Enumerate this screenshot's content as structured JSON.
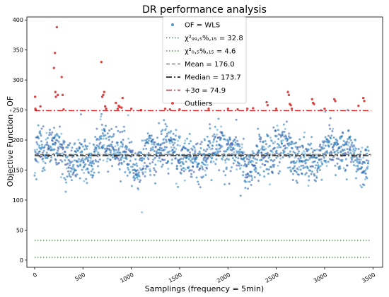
{
  "chart_data": {
    "type": "scatter",
    "title": "DR performance analysis",
    "xlabel": "Samplings (frequency = 5min)",
    "ylabel": "Objective Function - OF",
    "xlim": [
      -80,
      3600
    ],
    "ylim": [
      -12,
      405
    ],
    "x_ticks": [
      0,
      500,
      1000,
      1500,
      2000,
      2500,
      3000,
      3500
    ],
    "y_ticks": [
      0,
      50,
      100,
      150,
      200,
      250,
      300,
      350,
      400
    ],
    "grid": false,
    "legend_position": "top-center",
    "n_samples": 3456,
    "series": [
      {
        "name": "OF = WLS",
        "kind": "points",
        "color": "#1f77b4",
        "typical_range": [
          110,
          250
        ],
        "center": 176
      },
      {
        "name": "χ²₉₉,₅%,₁₅ = 32.8",
        "kind": "hline",
        "y": 32.8,
        "color": "#2ca02c",
        "style": "dotted"
      },
      {
        "name": "χ²₀,₅%,₁₅ = 4.6",
        "kind": "hline",
        "y": 4.6,
        "color": "#2ca02c",
        "style": "dotted"
      },
      {
        "name": "Mean = 176.0",
        "kind": "hline",
        "y": 176.0,
        "color": "#808080",
        "style": "dashed"
      },
      {
        "name": "Median = 173.7",
        "kind": "hline",
        "y": 173.7,
        "color": "#000000",
        "style": "dashdot"
      },
      {
        "name": "+3σ = 74.9",
        "kind": "hline",
        "y": 249,
        "color": "#d62728",
        "style": "dashdot"
      },
      {
        "name": "Outliers",
        "kind": "points",
        "color": "#d62728",
        "points": [
          [
            5,
            272
          ],
          [
            8,
            252
          ],
          [
            12,
            250
          ],
          [
            60,
            256
          ],
          [
            200,
            320
          ],
          [
            210,
            345
          ],
          [
            215,
            280
          ],
          [
            220,
            272
          ],
          [
            230,
            388
          ],
          [
            240,
            275
          ],
          [
            280,
            305
          ],
          [
            290,
            275
          ],
          [
            300,
            251
          ],
          [
            690,
            330
          ],
          [
            700,
            272
          ],
          [
            710,
            275
          ],
          [
            720,
            280
          ],
          [
            730,
            256
          ],
          [
            740,
            252
          ],
          [
            840,
            262
          ],
          [
            860,
            252
          ],
          [
            870,
            257
          ],
          [
            880,
            255
          ],
          [
            900,
            254
          ],
          [
            910,
            270
          ],
          [
            1000,
            252
          ],
          [
            1100,
            250
          ],
          [
            1350,
            252
          ],
          [
            1400,
            251
          ],
          [
            1500,
            251
          ],
          [
            1800,
            252
          ],
          [
            2000,
            252
          ],
          [
            2100,
            251
          ],
          [
            2200,
            252
          ],
          [
            2260,
            253
          ],
          [
            2400,
            263
          ],
          [
            2410,
            258
          ],
          [
            2500,
            252
          ],
          [
            2620,
            280
          ],
          [
            2630,
            275
          ],
          [
            2640,
            260
          ],
          [
            2650,
            258
          ],
          [
            2660,
            252
          ],
          [
            2870,
            268
          ],
          [
            2880,
            262
          ],
          [
            2890,
            260
          ],
          [
            3000,
            252
          ],
          [
            3100,
            268
          ],
          [
            3110,
            265
          ],
          [
            3350,
            257
          ],
          [
            3400,
            270
          ],
          [
            3410,
            265
          ]
        ]
      }
    ]
  }
}
